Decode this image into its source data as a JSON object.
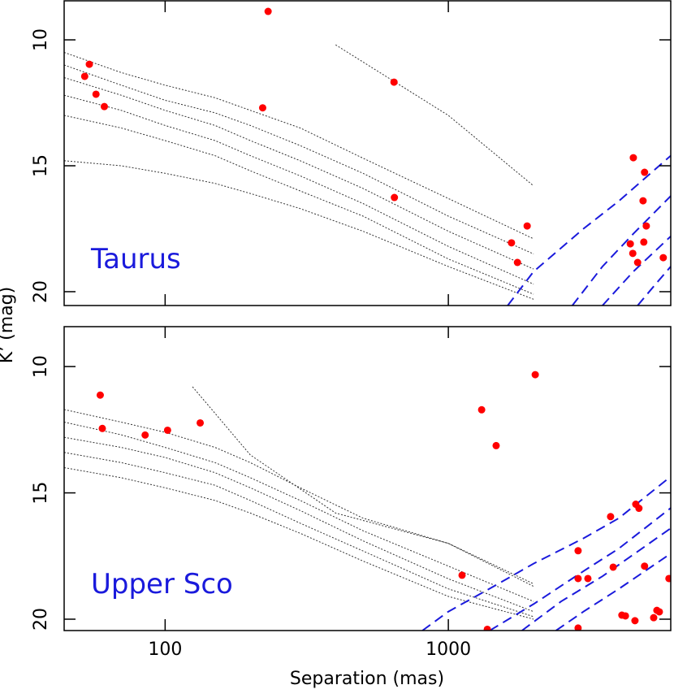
{
  "chart_data": [
    {
      "type": "scatter",
      "annotation": "Taurus",
      "ylabel": "K’ (mag)",
      "xlim": [
        44,
        6100
      ],
      "ylim": [
        20.55,
        8.45
      ],
      "yticks": [
        10,
        15,
        20
      ],
      "log_x": true,
      "color": "#ff0000",
      "x": [
        231,
        54,
        52,
        57,
        61,
        221,
        643,
        645,
        1671,
        1754,
        1898,
        4500,
        4930,
        4870,
        5000,
        4900,
        4390,
        4480,
        4660,
        5740
      ],
      "values": [
        8.87,
        10.97,
        11.45,
        12.16,
        12.65,
        12.7,
        11.68,
        16.26,
        18.06,
        18.84,
        17.39,
        14.68,
        15.26,
        16.39,
        17.39,
        18.03,
        18.1,
        18.48,
        18.84,
        18.65
      ],
      "contrast_curves": [
        {
          "x": [
            44,
            70,
            100,
            150,
            200,
            300,
            500,
            1000,
            2000
          ],
          "values": [
            10.5,
            11.3,
            11.8,
            12.3,
            12.8,
            13.5,
            14.7,
            16.3,
            17.9
          ]
        },
        {
          "x": [
            44,
            70,
            100,
            150,
            200,
            300,
            500,
            1000,
            2000
          ],
          "values": [
            11.0,
            11.8,
            12.4,
            12.9,
            13.4,
            14.2,
            15.3,
            17.0,
            18.5
          ]
        },
        {
          "x": [
            44,
            70,
            100,
            150,
            200,
            300,
            500,
            1000,
            2000
          ],
          "values": [
            11.5,
            12.2,
            12.8,
            13.4,
            14.0,
            14.8,
            15.9,
            17.6,
            19.1
          ]
        },
        {
          "x": [
            44,
            70,
            100,
            150,
            200,
            300,
            500,
            1000,
            2000
          ],
          "values": [
            12.2,
            12.8,
            13.4,
            14.0,
            14.6,
            15.4,
            16.5,
            18.2,
            19.7
          ]
        },
        {
          "x": [
            44,
            70,
            100,
            150,
            200,
            300,
            500,
            1000,
            2000
          ],
          "values": [
            13.0,
            13.5,
            14.0,
            14.6,
            15.2,
            16.0,
            17.0,
            18.7,
            20.1
          ]
        },
        {
          "x": [
            44,
            70,
            100,
            150,
            200,
            300,
            500,
            1000,
            2000
          ],
          "values": [
            14.8,
            15.0,
            15.3,
            15.7,
            16.1,
            16.7,
            17.6,
            19.0,
            20.3
          ]
        },
        {
          "x": [
            400,
            1000,
            2000
          ],
          "values": [
            10.2,
            13.0,
            15.8
          ]
        }
      ],
      "model_curves": [
        {
          "x": [
            1620,
            2000,
            3000,
            4000,
            6100
          ],
          "values": [
            20.55,
            19.2,
            17.5,
            16.4,
            14.6
          ]
        },
        {
          "x": [
            2740,
            3500,
            4500,
            6100
          ],
          "values": [
            20.55,
            19.0,
            17.7,
            16.2
          ]
        },
        {
          "x": [
            3500,
            4500,
            6100
          ],
          "values": [
            20.55,
            19.2,
            17.8
          ]
        },
        {
          "x": [
            4660,
            5300,
            6100
          ],
          "values": [
            20.55,
            19.8,
            19.0
          ]
        }
      ]
    },
    {
      "type": "scatter",
      "annotation": "Upper Sco",
      "xlabel": "Separation (mas)",
      "xlim": [
        44,
        6100
      ],
      "ylim": [
        20.45,
        8.42
      ],
      "xticks": [
        100,
        1000
      ],
      "yticks": [
        10,
        15,
        20
      ],
      "log_x": true,
      "color": "#ff0000",
      "x": [
        59,
        60,
        85,
        102,
        133,
        2027,
        1311,
        1475,
        1118,
        1373,
        2872,
        2872,
        3110,
        2872,
        3740,
        3820,
        4100,
        4220,
        4590,
        4710,
        4930,
        4560,
        5310,
        5450,
        5560,
        6010
      ],
      "values": [
        11.13,
        12.45,
        12.71,
        12.52,
        12.23,
        10.32,
        11.71,
        13.13,
        18.26,
        20.4,
        17.29,
        18.39,
        18.39,
        20.35,
        15.94,
        17.94,
        19.84,
        19.87,
        15.45,
        15.61,
        17.9,
        20.06,
        19.94,
        19.65,
        19.71,
        18.39
      ],
      "contrast_curves": [
        {
          "x": [
            44,
            70,
            100,
            150,
            200,
            300,
            500,
            1000,
            2000
          ],
          "values": [
            11.7,
            12.2,
            12.6,
            13.2,
            13.8,
            14.8,
            16.0,
            17.0,
            18.6
          ]
        },
        {
          "x": [
            44,
            70,
            100,
            150,
            200,
            300,
            500,
            1000,
            2000
          ],
          "values": [
            12.2,
            12.7,
            13.2,
            13.8,
            14.4,
            15.3,
            16.5,
            17.9,
            19.3
          ]
        },
        {
          "x": [
            44,
            70,
            100,
            150,
            200,
            300,
            500,
            1000,
            2000
          ],
          "values": [
            12.8,
            13.2,
            13.6,
            14.2,
            14.8,
            15.7,
            16.9,
            18.4,
            19.7
          ]
        },
        {
          "x": [
            44,
            70,
            100,
            150,
            200,
            300,
            500,
            1000,
            2000
          ],
          "values": [
            13.4,
            13.8,
            14.2,
            14.7,
            15.3,
            16.2,
            17.3,
            18.8,
            19.9
          ]
        },
        {
          "x": [
            44,
            70,
            100,
            150,
            200,
            300,
            500,
            1000,
            2000
          ],
          "values": [
            14.0,
            14.4,
            14.8,
            15.3,
            15.8,
            16.6,
            17.7,
            19.1,
            20.0
          ]
        },
        {
          "x": [
            125,
            200,
            400,
            1000,
            2000
          ],
          "values": [
            10.8,
            13.5,
            15.8,
            17.0,
            18.7
          ]
        }
      ],
      "model_curves": [
        {
          "x": [
            810,
            1000,
            1500,
            2000,
            3000,
            4000,
            6100
          ],
          "values": [
            20.45,
            19.7,
            18.6,
            17.8,
            16.8,
            16.0,
            14.35
          ]
        },
        {
          "x": [
            1400,
            2000,
            3000,
            4000,
            6100
          ],
          "values": [
            20.45,
            19.4,
            18.1,
            17.2,
            15.6
          ]
        },
        {
          "x": [
            1820,
            2500,
            3500,
            6100
          ],
          "values": [
            20.45,
            19.3,
            18.3,
            16.4
          ]
        },
        {
          "x": [
            2400,
            3000,
            4000,
            6100
          ],
          "values": [
            20.45,
            19.7,
            18.8,
            17.4
          ]
        }
      ]
    }
  ]
}
